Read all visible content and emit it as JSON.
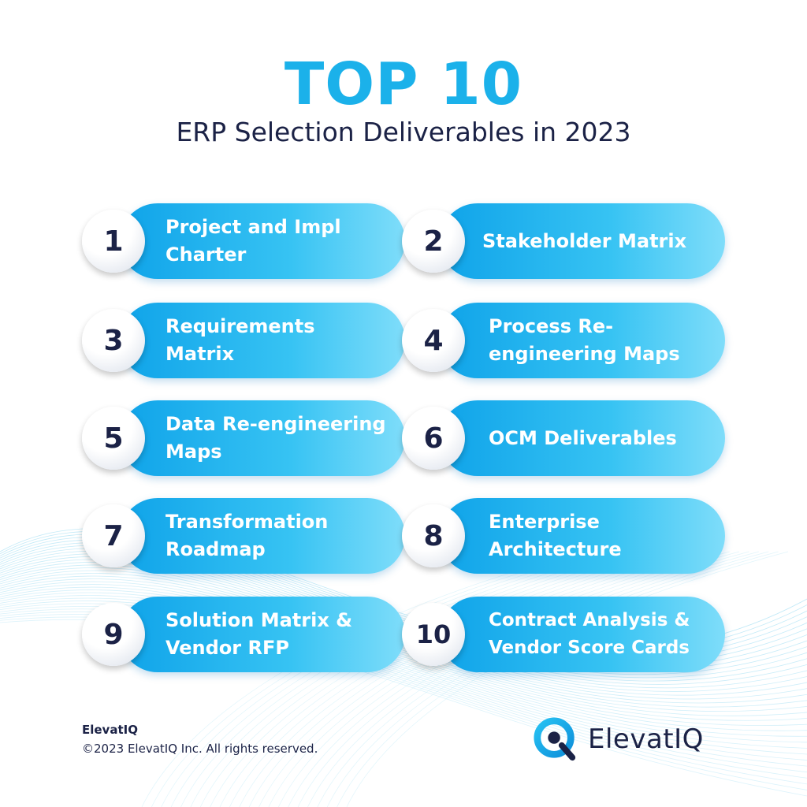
{
  "header": {
    "title": "TOP 10",
    "subtitle": "ERP Selection Deliverables in 2023"
  },
  "colors": {
    "accent": "#1BB1EA",
    "navy": "#1B2246",
    "pill_start": "#0FA3E9",
    "pill_end": "#7FDDFA"
  },
  "deliverables": [
    {
      "number": "1",
      "label": "Project and Impl\nCharter"
    },
    {
      "number": "2",
      "label": "Stakeholder Matrix"
    },
    {
      "number": "3",
      "label": "Requirements\nMatrix"
    },
    {
      "number": "4",
      "label": "Process Re-\nengineering Maps"
    },
    {
      "number": "5",
      "label": "Data Re-engineering\nMaps"
    },
    {
      "number": "6",
      "label": "OCM Deliverables"
    },
    {
      "number": "7",
      "label": "Transformation\nRoadmap"
    },
    {
      "number": "8",
      "label": "Enterprise\nArchitecture"
    },
    {
      "number": "9",
      "label": "Solution Matrix &\nVendor RFP"
    },
    {
      "number": "10",
      "label": "Contract Analysis &\nVendor Score Cards"
    }
  ],
  "footer": {
    "brand": "ElevatIQ",
    "copyright": "©2023 ElevatIQ Inc. All rights reserved."
  },
  "logo": {
    "icon": "elevatiq-q-logo-icon",
    "text": "ElevatIQ"
  }
}
